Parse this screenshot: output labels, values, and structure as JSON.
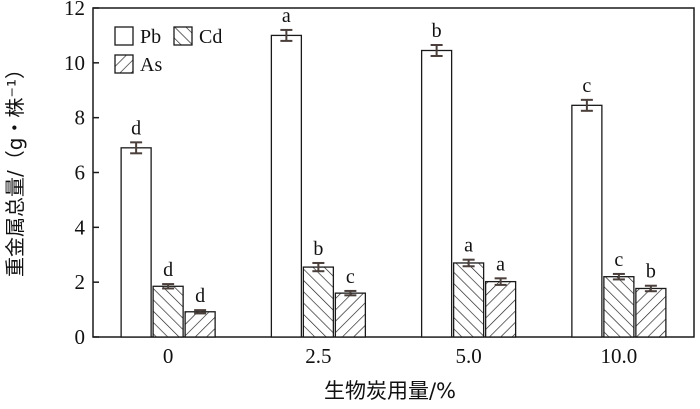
{
  "chart_data": {
    "type": "bar",
    "categories": [
      "0",
      "2.5",
      "5.0",
      "10.0"
    ],
    "series": [
      {
        "name": "Pb",
        "pattern": "none",
        "values": [
          6.9,
          11.0,
          10.45,
          8.45
        ],
        "errors": [
          0.2,
          0.2,
          0.2,
          0.2
        ],
        "letters": [
          "d",
          "a",
          "b",
          "c"
        ]
      },
      {
        "name": "Cd",
        "pattern": "hatch-backslash",
        "values": [
          1.85,
          2.55,
          2.7,
          2.2
        ],
        "errors": [
          0.08,
          0.15,
          0.12,
          0.1
        ],
        "letters": [
          "d",
          "b",
          "a",
          "c"
        ]
      },
      {
        "name": "As",
        "pattern": "hatch-slash",
        "values": [
          0.92,
          1.6,
          2.02,
          1.77
        ],
        "errors": [
          0.06,
          0.08,
          0.12,
          0.1
        ],
        "letters": [
          "d",
          "c",
          "a",
          "b"
        ]
      }
    ],
    "xlabel": "生物炭用量/%",
    "ylabel": "重金属总量/（g・株⁻¹）",
    "ylim": [
      0,
      12
    ],
    "yticks": [
      "0",
      "2",
      "4",
      "6",
      "8",
      "10",
      "12"
    ],
    "legend_position": "top-left",
    "grid": false,
    "colors": {
      "bar_fill": "#ffffff",
      "stroke": "#1a1a1a",
      "error_bar": "#4a3f3a"
    }
  }
}
